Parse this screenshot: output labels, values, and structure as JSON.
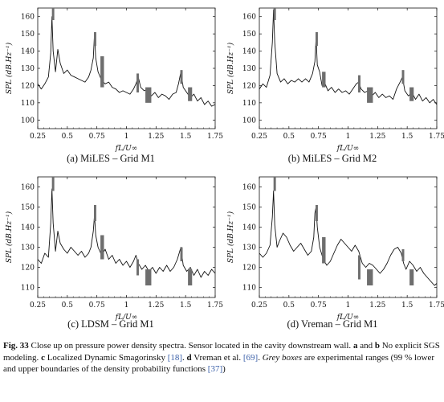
{
  "panels": [
    {
      "caption": "(a) MiLES – Grid M1",
      "xlabel": "fL/U∞",
      "ylabel": "SPL (dB.Hz⁻¹)",
      "xticks": [
        "0.25",
        "0.5",
        "0.75",
        "1",
        "1.25",
        "1.5",
        "1.75"
      ],
      "yticks": [
        "100",
        "110",
        "120",
        "130",
        "140",
        "150",
        "160"
      ]
    },
    {
      "caption": "(b) MiLES – Grid M2",
      "xlabel": "fL/U∞",
      "ylabel": "SPL (dB.Hz⁻¹)",
      "xticks": [
        "0.25",
        "0.5",
        "0.75",
        "1",
        "1.25",
        "1.5",
        "1.75"
      ],
      "yticks": [
        "100",
        "110",
        "120",
        "130",
        "140",
        "150",
        "160"
      ]
    },
    {
      "caption": "(c) LDSM – Grid M1",
      "xlabel": "fL/U∞",
      "ylabel": "SPL (dB.Hz⁻¹)",
      "xticks": [
        "0.25",
        "0.5",
        "0.75",
        "1",
        "1.25",
        "1.5",
        "1.75"
      ],
      "yticks": [
        "110",
        "120",
        "130",
        "140",
        "150",
        "160"
      ]
    },
    {
      "caption": "(d) Vreman – Grid M1",
      "xlabel": "fL/U∞",
      "ylabel": "SPL (dB.Hz⁻¹)",
      "xticks": [
        "0.25",
        "0.5",
        "0.75",
        "1",
        "1.25",
        "1.5",
        "1.75"
      ],
      "yticks": [
        "110",
        "120",
        "130",
        "140",
        "150",
        "160"
      ]
    }
  ],
  "figure_caption": {
    "label": "Fig. 33",
    "title": "Close up on pressure power density spectra. Sensor located in the cavity downstream wall.",
    "a_b": "a",
    "and": "and",
    "b": "b",
    "no_sgs": "No explicit SGS modeling.",
    "c": "c",
    "ldsm": "Localized Dynamic Smagorinsky",
    "ref18": "[18]",
    "d": "d",
    "vreman": "Vreman et al.",
    "ref69": "[69]",
    "grey_boxes": "Grey boxes",
    "ranges": "are experimental ranges (99 % lower and upper boundaries of the density probability functions",
    "ref37": "[37]",
    "close": ")"
  },
  "chart_data": [
    {
      "type": "line",
      "panel": "a",
      "xlim": [
        0.25,
        1.75
      ],
      "ylim": [
        95,
        165
      ],
      "xlabel": "fL/U∞",
      "ylabel": "SPL (dB.Hz⁻¹)",
      "grid": false,
      "series_points": [
        [
          0.25,
          121
        ],
        [
          0.28,
          118
        ],
        [
          0.31,
          121
        ],
        [
          0.34,
          125
        ],
        [
          0.36,
          139
        ],
        [
          0.37,
          160
        ],
        [
          0.38,
          140
        ],
        [
          0.4,
          128
        ],
        [
          0.42,
          141
        ],
        [
          0.44,
          133
        ],
        [
          0.47,
          127
        ],
        [
          0.5,
          129
        ],
        [
          0.53,
          126
        ],
        [
          0.56,
          125
        ],
        [
          0.59,
          124
        ],
        [
          0.62,
          123
        ],
        [
          0.65,
          122
        ],
        [
          0.68,
          125
        ],
        [
          0.7,
          129
        ],
        [
          0.72,
          136
        ],
        [
          0.73,
          150
        ],
        [
          0.74,
          136
        ],
        [
          0.76,
          128
        ],
        [
          0.79,
          123
        ],
        [
          0.82,
          121
        ],
        [
          0.85,
          122
        ],
        [
          0.88,
          119
        ],
        [
          0.91,
          118
        ],
        [
          0.94,
          116
        ],
        [
          0.97,
          117
        ],
        [
          1.0,
          116
        ],
        [
          1.03,
          115
        ],
        [
          1.06,
          118
        ],
        [
          1.08,
          121
        ],
        [
          1.1,
          125
        ],
        [
          1.12,
          119
        ],
        [
          1.15,
          117
        ],
        [
          1.18,
          118
        ],
        [
          1.21,
          114
        ],
        [
          1.24,
          116
        ],
        [
          1.27,
          113
        ],
        [
          1.3,
          115
        ],
        [
          1.33,
          114
        ],
        [
          1.36,
          112
        ],
        [
          1.39,
          115
        ],
        [
          1.42,
          116
        ],
        [
          1.44,
          121
        ],
        [
          1.46,
          128
        ],
        [
          1.48,
          119
        ],
        [
          1.51,
          116
        ],
        [
          1.54,
          113
        ],
        [
          1.57,
          115
        ],
        [
          1.6,
          111
        ],
        [
          1.63,
          113
        ],
        [
          1.66,
          109
        ],
        [
          1.69,
          111
        ],
        [
          1.72,
          108
        ],
        [
          1.75,
          109
        ]
      ],
      "experimental_ranges": [
        [
          0.37,
          0.39,
          158,
          166
        ],
        [
          0.725,
          0.745,
          143,
          151
        ],
        [
          0.78,
          0.81,
          119,
          137
        ],
        [
          1.085,
          1.105,
          116,
          127
        ],
        [
          1.16,
          1.21,
          110,
          119
        ],
        [
          1.455,
          1.475,
          121,
          129
        ],
        [
          1.52,
          1.555,
          111,
          119
        ]
      ]
    },
    {
      "type": "line",
      "panel": "b",
      "xlim": [
        0.25,
        1.75
      ],
      "ylim": [
        95,
        165
      ],
      "xlabel": "fL/U∞",
      "ylabel": "SPL (dB.Hz⁻¹)",
      "grid": false,
      "series_points": [
        [
          0.25,
          118
        ],
        [
          0.28,
          121
        ],
        [
          0.31,
          119
        ],
        [
          0.34,
          126
        ],
        [
          0.36,
          145
        ],
        [
          0.37,
          164
        ],
        [
          0.38,
          145
        ],
        [
          0.4,
          127
        ],
        [
          0.43,
          122
        ],
        [
          0.46,
          124
        ],
        [
          0.49,
          121
        ],
        [
          0.52,
          123
        ],
        [
          0.55,
          122
        ],
        [
          0.58,
          124
        ],
        [
          0.61,
          122
        ],
        [
          0.64,
          124
        ],
        [
          0.67,
          122
        ],
        [
          0.7,
          127
        ],
        [
          0.72,
          134
        ],
        [
          0.73,
          148
        ],
        [
          0.74,
          132
        ],
        [
          0.76,
          128
        ],
        [
          0.78,
          120
        ],
        [
          0.8,
          122
        ],
        [
          0.83,
          117
        ],
        [
          0.86,
          119
        ],
        [
          0.89,
          116
        ],
        [
          0.92,
          118
        ],
        [
          0.95,
          116
        ],
        [
          0.98,
          117
        ],
        [
          1.01,
          115
        ],
        [
          1.04,
          118
        ],
        [
          1.07,
          121
        ],
        [
          1.09,
          122
        ],
        [
          1.11,
          118
        ],
        [
          1.14,
          116
        ],
        [
          1.17,
          117
        ],
        [
          1.2,
          114
        ],
        [
          1.23,
          116
        ],
        [
          1.26,
          113
        ],
        [
          1.29,
          115
        ],
        [
          1.32,
          113
        ],
        [
          1.35,
          114
        ],
        [
          1.38,
          112
        ],
        [
          1.41,
          118
        ],
        [
          1.44,
          122
        ],
        [
          1.46,
          125
        ],
        [
          1.48,
          117
        ],
        [
          1.51,
          114
        ],
        [
          1.54,
          116
        ],
        [
          1.57,
          112
        ],
        [
          1.6,
          115
        ],
        [
          1.63,
          111
        ],
        [
          1.66,
          113
        ],
        [
          1.69,
          110
        ],
        [
          1.72,
          112
        ],
        [
          1.75,
          109
        ]
      ],
      "experimental_ranges": [
        [
          0.37,
          0.39,
          158,
          166
        ],
        [
          0.725,
          0.745,
          143,
          151
        ],
        [
          0.78,
          0.81,
          119,
          128
        ],
        [
          1.085,
          1.105,
          116,
          126
        ],
        [
          1.16,
          1.21,
          110,
          119
        ],
        [
          1.455,
          1.475,
          121,
          129
        ],
        [
          1.52,
          1.555,
          111,
          119
        ]
      ]
    },
    {
      "type": "line",
      "panel": "c",
      "xlim": [
        0.25,
        1.75
      ],
      "ylim": [
        105,
        165
      ],
      "xlabel": "fL/U∞",
      "ylabel": "SPL (dB.Hz⁻¹)",
      "grid": false,
      "series_points": [
        [
          0.25,
          124
        ],
        [
          0.28,
          122
        ],
        [
          0.31,
          127
        ],
        [
          0.34,
          125
        ],
        [
          0.36,
          142
        ],
        [
          0.37,
          159
        ],
        [
          0.38,
          142
        ],
        [
          0.4,
          128
        ],
        [
          0.42,
          138
        ],
        [
          0.44,
          132
        ],
        [
          0.47,
          129
        ],
        [
          0.5,
          127
        ],
        [
          0.53,
          130
        ],
        [
          0.56,
          128
        ],
        [
          0.59,
          126
        ],
        [
          0.62,
          128
        ],
        [
          0.65,
          125
        ],
        [
          0.68,
          127
        ],
        [
          0.7,
          130
        ],
        [
          0.72,
          138
        ],
        [
          0.73,
          146
        ],
        [
          0.74,
          136
        ],
        [
          0.76,
          130
        ],
        [
          0.79,
          126
        ],
        [
          0.82,
          129
        ],
        [
          0.85,
          124
        ],
        [
          0.88,
          126
        ],
        [
          0.91,
          122
        ],
        [
          0.94,
          124
        ],
        [
          0.97,
          121
        ],
        [
          1.0,
          123
        ],
        [
          1.03,
          120
        ],
        [
          1.06,
          123
        ],
        [
          1.08,
          126
        ],
        [
          1.1,
          122
        ],
        [
          1.13,
          119
        ],
        [
          1.16,
          121
        ],
        [
          1.19,
          118
        ],
        [
          1.22,
          120
        ],
        [
          1.25,
          117
        ],
        [
          1.28,
          120
        ],
        [
          1.31,
          118
        ],
        [
          1.34,
          121
        ],
        [
          1.37,
          118
        ],
        [
          1.4,
          120
        ],
        [
          1.43,
          124
        ],
        [
          1.46,
          130
        ],
        [
          1.48,
          121
        ],
        [
          1.51,
          118
        ],
        [
          1.54,
          120
        ],
        [
          1.57,
          116
        ],
        [
          1.6,
          119
        ],
        [
          1.63,
          115
        ],
        [
          1.66,
          118
        ],
        [
          1.69,
          116
        ],
        [
          1.72,
          119
        ],
        [
          1.75,
          117
        ]
      ],
      "experimental_ranges": [
        [
          0.37,
          0.39,
          158,
          166
        ],
        [
          0.725,
          0.745,
          143,
          151
        ],
        [
          0.78,
          0.81,
          124,
          136
        ],
        [
          1.085,
          1.105,
          116,
          124
        ],
        [
          1.16,
          1.21,
          111,
          119
        ],
        [
          1.455,
          1.475,
          123,
          130
        ],
        [
          1.52,
          1.555,
          111,
          119
        ]
      ]
    },
    {
      "type": "line",
      "panel": "d",
      "xlim": [
        0.25,
        1.75
      ],
      "ylim": [
        105,
        165
      ],
      "xlabel": "fL/U∞",
      "ylabel": "SPL (dB.Hz⁻¹)",
      "grid": false,
      "series_points": [
        [
          0.25,
          127
        ],
        [
          0.28,
          125
        ],
        [
          0.31,
          127
        ],
        [
          0.34,
          131
        ],
        [
          0.36,
          145
        ],
        [
          0.37,
          158
        ],
        [
          0.38,
          141
        ],
        [
          0.4,
          130
        ],
        [
          0.42,
          133
        ],
        [
          0.45,
          137
        ],
        [
          0.48,
          135
        ],
        [
          0.51,
          131
        ],
        [
          0.54,
          128
        ],
        [
          0.57,
          130
        ],
        [
          0.6,
          132
        ],
        [
          0.63,
          129
        ],
        [
          0.66,
          126
        ],
        [
          0.69,
          128
        ],
        [
          0.71,
          135
        ],
        [
          0.72,
          147
        ],
        [
          0.73,
          150
        ],
        [
          0.74,
          140
        ],
        [
          0.76,
          130
        ],
        [
          0.79,
          124
        ],
        [
          0.82,
          121
        ],
        [
          0.85,
          123
        ],
        [
          0.88,
          127
        ],
        [
          0.91,
          131
        ],
        [
          0.94,
          134
        ],
        [
          0.97,
          132
        ],
        [
          1.0,
          130
        ],
        [
          1.03,
          128
        ],
        [
          1.06,
          131
        ],
        [
          1.09,
          128
        ],
        [
          1.12,
          122
        ],
        [
          1.15,
          120
        ],
        [
          1.18,
          122
        ],
        [
          1.21,
          121
        ],
        [
          1.24,
          119
        ],
        [
          1.27,
          117
        ],
        [
          1.3,
          119
        ],
        [
          1.33,
          122
        ],
        [
          1.36,
          126
        ],
        [
          1.39,
          129
        ],
        [
          1.42,
          130
        ],
        [
          1.45,
          127
        ],
        [
          1.47,
          122
        ],
        [
          1.49,
          119
        ],
        [
          1.52,
          123
        ],
        [
          1.55,
          121
        ],
        [
          1.58,
          118
        ],
        [
          1.61,
          120
        ],
        [
          1.64,
          117
        ],
        [
          1.67,
          115
        ],
        [
          1.7,
          113
        ],
        [
          1.73,
          111
        ],
        [
          1.75,
          112
        ]
      ],
      "experimental_ranges": [
        [
          0.37,
          0.39,
          158,
          166
        ],
        [
          0.725,
          0.745,
          143,
          151
        ],
        [
          0.78,
          0.81,
          122,
          135
        ],
        [
          1.085,
          1.105,
          114,
          126
        ],
        [
          1.16,
          1.21,
          111,
          119
        ],
        [
          1.455,
          1.475,
          123,
          129
        ],
        [
          1.52,
          1.555,
          111,
          119
        ]
      ]
    }
  ]
}
